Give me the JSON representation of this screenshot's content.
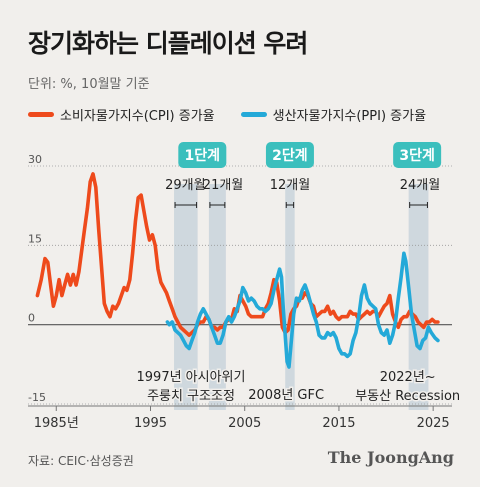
{
  "title": "장기화하는 디플레이션 우려",
  "unit": "단위: %, 10월말 기준",
  "source": "자료: CEIC·삼성증권",
  "logo": "The JoongAng",
  "colors": {
    "cpi": "#ee4a1c",
    "ppi": "#24a9d8",
    "stage": "#3bbfbd",
    "band": "#c9d3dc"
  },
  "chart_data": {
    "type": "line",
    "xlim": [
      1982,
      2027
    ],
    "ylim": [
      -15,
      30
    ],
    "x_ticks": [
      {
        "x": 1985,
        "label": "1985년"
      },
      {
        "x": 1995,
        "label": "1995"
      },
      {
        "x": 2005,
        "label": "2005"
      },
      {
        "x": 2015,
        "label": "2015"
      },
      {
        "x": 2025,
        "label": "2025"
      }
    ],
    "y_ticks": [
      {
        "y": 30,
        "label": "30"
      },
      {
        "y": 15,
        "label": "15"
      },
      {
        "y": 0,
        "label": "0"
      },
      {
        "y": -15,
        "label": "-15"
      }
    ],
    "series": [
      {
        "name": "소비자물가지수(CPI) 증가율",
        "color_key": "cpi",
        "points": [
          [
            1983.0,
            5.5
          ],
          [
            1983.4,
            8.5
          ],
          [
            1983.8,
            12.5
          ],
          [
            1984.1,
            11.8
          ],
          [
            1984.4,
            7.5
          ],
          [
            1984.7,
            3.5
          ],
          [
            1985.0,
            5.5
          ],
          [
            1985.3,
            8.5
          ],
          [
            1985.6,
            5.5
          ],
          [
            1985.9,
            7.5
          ],
          [
            1986.2,
            9.5
          ],
          [
            1986.5,
            7.5
          ],
          [
            1986.8,
            9.5
          ],
          [
            1987.1,
            7.5
          ],
          [
            1987.4,
            10.0
          ],
          [
            1987.7,
            14.0
          ],
          [
            1988.0,
            18.0
          ],
          [
            1988.3,
            22.0
          ],
          [
            1988.6,
            27.0
          ],
          [
            1988.9,
            28.5
          ],
          [
            1989.2,
            26.0
          ],
          [
            1989.5,
            18.0
          ],
          [
            1989.8,
            11.0
          ],
          [
            1990.1,
            4.0
          ],
          [
            1990.4,
            2.5
          ],
          [
            1990.7,
            1.5
          ],
          [
            1991.0,
            3.5
          ],
          [
            1991.3,
            3.0
          ],
          [
            1991.6,
            4.0
          ],
          [
            1991.9,
            5.5
          ],
          [
            1992.2,
            7.0
          ],
          [
            1992.5,
            6.5
          ],
          [
            1992.8,
            8.5
          ],
          [
            1993.1,
            13.5
          ],
          [
            1993.4,
            19.5
          ],
          [
            1993.7,
            24.0
          ],
          [
            1994.0,
            24.5
          ],
          [
            1994.3,
            21.5
          ],
          [
            1994.6,
            18.5
          ],
          [
            1994.9,
            16.0
          ],
          [
            1995.2,
            17.0
          ],
          [
            1995.5,
            15.0
          ],
          [
            1995.8,
            10.5
          ],
          [
            1996.1,
            8.0
          ],
          [
            1996.4,
            7.0
          ],
          [
            1996.7,
            6.0
          ],
          [
            1997.0,
            4.5
          ],
          [
            1997.3,
            3.0
          ],
          [
            1997.6,
            1.5
          ],
          [
            1997.9,
            0.5
          ],
          [
            1998.2,
            -0.5
          ],
          [
            1998.5,
            -1.0
          ],
          [
            1998.8,
            -1.5
          ],
          [
            1999.1,
            -2.0
          ],
          [
            1999.4,
            -1.5
          ],
          [
            1999.7,
            -1.0
          ],
          [
            2000.0,
            0.0
          ],
          [
            2000.3,
            0.5
          ],
          [
            2000.6,
            0.5
          ],
          [
            2000.9,
            1.5
          ],
          [
            2001.2,
            1.0
          ],
          [
            2001.5,
            -0.5
          ],
          [
            2001.8,
            -0.5
          ],
          [
            2002.1,
            -1.0
          ],
          [
            2002.4,
            -0.5
          ],
          [
            2002.7,
            -0.5
          ],
          [
            2003.0,
            0.5
          ],
          [
            2003.3,
            1.0
          ],
          [
            2003.6,
            1.0
          ],
          [
            2003.9,
            3.0
          ],
          [
            2004.2,
            2.5
          ],
          [
            2004.5,
            5.5
          ],
          [
            2004.8,
            4.5
          ],
          [
            2005.1,
            3.5
          ],
          [
            2005.4,
            2.0
          ],
          [
            2005.7,
            1.5
          ],
          [
            2006.0,
            1.5
          ],
          [
            2006.3,
            1.5
          ],
          [
            2006.6,
            1.5
          ],
          [
            2006.9,
            1.5
          ],
          [
            2007.2,
            3.0
          ],
          [
            2007.5,
            4.0
          ],
          [
            2007.8,
            6.0
          ],
          [
            2008.1,
            8.5
          ],
          [
            2008.4,
            8.0
          ],
          [
            2008.7,
            4.5
          ],
          [
            2009.0,
            -0.5
          ],
          [
            2009.3,
            -1.5
          ],
          [
            2009.6,
            -1.0
          ],
          [
            2009.9,
            2.0
          ],
          [
            2010.2,
            3.0
          ],
          [
            2010.5,
            3.5
          ],
          [
            2010.8,
            5.0
          ],
          [
            2011.1,
            5.0
          ],
          [
            2011.4,
            6.0
          ],
          [
            2011.7,
            5.5
          ],
          [
            2012.0,
            4.0
          ],
          [
            2012.3,
            3.5
          ],
          [
            2012.6,
            1.5
          ],
          [
            2012.9,
            2.0
          ],
          [
            2013.2,
            2.5
          ],
          [
            2013.5,
            2.5
          ],
          [
            2013.8,
            3.5
          ],
          [
            2014.1,
            2.0
          ],
          [
            2014.4,
            2.5
          ],
          [
            2014.7,
            1.5
          ],
          [
            2015.0,
            1.0
          ],
          [
            2015.3,
            1.5
          ],
          [
            2015.6,
            1.5
          ],
          [
            2015.9,
            1.5
          ],
          [
            2016.2,
            2.5
          ],
          [
            2016.5,
            2.0
          ],
          [
            2016.8,
            2.0
          ],
          [
            2017.1,
            1.0
          ],
          [
            2017.4,
            1.5
          ],
          [
            2017.7,
            2.0
          ],
          [
            2018.0,
            2.5
          ],
          [
            2018.3,
            2.0
          ],
          [
            2018.6,
            2.5
          ],
          [
            2018.9,
            2.5
          ],
          [
            2019.2,
            1.5
          ],
          [
            2019.5,
            2.5
          ],
          [
            2019.8,
            3.5
          ],
          [
            2020.1,
            4.0
          ],
          [
            2020.4,
            5.5
          ],
          [
            2020.7,
            2.0
          ],
          [
            2021.0,
            0.5
          ],
          [
            2021.3,
            -0.5
          ],
          [
            2021.6,
            1.0
          ],
          [
            2021.9,
            1.5
          ],
          [
            2022.2,
            1.5
          ],
          [
            2022.5,
            2.5
          ],
          [
            2022.8,
            2.0
          ],
          [
            2023.1,
            1.5
          ],
          [
            2023.4,
            0.5
          ],
          [
            2023.7,
            0.0
          ],
          [
            2024.0,
            -0.5
          ],
          [
            2024.3,
            0.5
          ],
          [
            2024.6,
            0.5
          ],
          [
            2024.9,
            1.0
          ],
          [
            2025.2,
            0.5
          ],
          [
            2025.5,
            0.5
          ]
        ]
      },
      {
        "name": "생산자물가지수(PPI) 증가율",
        "color_key": "ppi",
        "points": [
          [
            1996.8,
            0.5
          ],
          [
            1997.0,
            0.0
          ],
          [
            1997.3,
            0.5
          ],
          [
            1997.6,
            -1.0
          ],
          [
            1997.9,
            -1.5
          ],
          [
            1998.2,
            -2.0
          ],
          [
            1998.5,
            -3.0
          ],
          [
            1998.8,
            -4.0
          ],
          [
            1999.1,
            -4.5
          ],
          [
            1999.4,
            -3.0
          ],
          [
            1999.7,
            -1.5
          ],
          [
            2000.0,
            0.5
          ],
          [
            2000.3,
            2.0
          ],
          [
            2000.6,
            3.0
          ],
          [
            2000.9,
            2.0
          ],
          [
            2001.2,
            1.0
          ],
          [
            2001.5,
            -0.5
          ],
          [
            2001.8,
            -2.0
          ],
          [
            2002.1,
            -3.5
          ],
          [
            2002.4,
            -3.5
          ],
          [
            2002.7,
            -2.0
          ],
          [
            2003.0,
            0.5
          ],
          [
            2003.3,
            1.5
          ],
          [
            2003.6,
            0.5
          ],
          [
            2003.9,
            1.5
          ],
          [
            2004.2,
            3.0
          ],
          [
            2004.5,
            4.5
          ],
          [
            2004.8,
            7.0
          ],
          [
            2005.1,
            6.0
          ],
          [
            2005.4,
            4.5
          ],
          [
            2005.7,
            5.0
          ],
          [
            2006.0,
            4.5
          ],
          [
            2006.3,
            3.5
          ],
          [
            2006.6,
            3.0
          ],
          [
            2006.9,
            3.0
          ],
          [
            2007.2,
            2.5
          ],
          [
            2007.5,
            3.0
          ],
          [
            2007.8,
            4.0
          ],
          [
            2008.1,
            6.5
          ],
          [
            2008.4,
            8.5
          ],
          [
            2008.7,
            10.5
          ],
          [
            2008.9,
            9.0
          ],
          [
            2009.1,
            3.0
          ],
          [
            2009.3,
            -2.0
          ],
          [
            2009.5,
            -7.0
          ],
          [
            2009.7,
            -8.0
          ],
          [
            2009.9,
            -4.0
          ],
          [
            2010.2,
            2.0
          ],
          [
            2010.5,
            5.0
          ],
          [
            2010.8,
            4.5
          ],
          [
            2011.1,
            6.5
          ],
          [
            2011.4,
            7.5
          ],
          [
            2011.7,
            6.0
          ],
          [
            2012.0,
            4.0
          ],
          [
            2012.3,
            2.0
          ],
          [
            2012.6,
            0.5
          ],
          [
            2012.9,
            -2.0
          ],
          [
            2013.2,
            -2.5
          ],
          [
            2013.5,
            -2.5
          ],
          [
            2013.8,
            -1.5
          ],
          [
            2014.1,
            -2.0
          ],
          [
            2014.4,
            -1.5
          ],
          [
            2014.7,
            -2.5
          ],
          [
            2015.0,
            -4.5
          ],
          [
            2015.3,
            -5.5
          ],
          [
            2015.6,
            -5.5
          ],
          [
            2015.9,
            -6.0
          ],
          [
            2016.2,
            -5.5
          ],
          [
            2016.5,
            -3.0
          ],
          [
            2016.8,
            -1.5
          ],
          [
            2017.1,
            1.5
          ],
          [
            2017.4,
            5.5
          ],
          [
            2017.7,
            7.5
          ],
          [
            2018.0,
            5.0
          ],
          [
            2018.3,
            4.0
          ],
          [
            2018.6,
            3.5
          ],
          [
            2018.9,
            3.0
          ],
          [
            2019.2,
            0.0
          ],
          [
            2019.5,
            -1.5
          ],
          [
            2019.8,
            -2.0
          ],
          [
            2020.1,
            -1.0
          ],
          [
            2020.4,
            -3.5
          ],
          [
            2020.7,
            -2.0
          ],
          [
            2021.0,
            0.5
          ],
          [
            2021.3,
            5.0
          ],
          [
            2021.6,
            9.0
          ],
          [
            2021.9,
            13.5
          ],
          [
            2022.1,
            12.0
          ],
          [
            2022.4,
            7.0
          ],
          [
            2022.7,
            2.0
          ],
          [
            2023.0,
            -1.0
          ],
          [
            2023.3,
            -4.0
          ],
          [
            2023.6,
            -4.5
          ],
          [
            2023.9,
            -3.0
          ],
          [
            2024.2,
            -2.5
          ],
          [
            2024.5,
            -0.5
          ],
          [
            2024.8,
            -1.5
          ],
          [
            2025.2,
            -2.5
          ],
          [
            2025.5,
            -3.0
          ]
        ]
      }
    ],
    "bands": [
      {
        "x0": 1997.5,
        "x1": 2000.0
      },
      {
        "x0": 2001.2,
        "x1": 2003.0
      },
      {
        "x0": 2009.3,
        "x1": 2010.3
      },
      {
        "x0": 2022.4,
        "x1": 2024.5
      }
    ],
    "stages": [
      {
        "label": "1단계",
        "x": 2000.5
      },
      {
        "label": "2단계",
        "x": 2009.8
      },
      {
        "label": "3단계",
        "x": 2023.3
      }
    ],
    "durations": [
      {
        "label": "29개월",
        "x": 1998.7,
        "bx0": 1997.5,
        "bx1": 2000.0
      },
      {
        "label": "21개월",
        "x": 2002.7,
        "bx0": 2001.2,
        "bx1": 2003.0
      },
      {
        "label": "12개월",
        "x": 2009.8,
        "bx0": 2009.3,
        "bx1": 2010.3
      },
      {
        "label": "24개월",
        "x": 2023.6,
        "bx0": 2022.4,
        "bx1": 2024.5
      }
    ],
    "annotations": [
      {
        "lines": [
          "1997년 아시아위기",
          "주룽치 구조조정"
        ],
        "x": 1999.3
      },
      {
        "lines": [
          "2008년 GFC"
        ],
        "x": 2009.4
      },
      {
        "lines": [
          "2022년~",
          "부동산 Recession"
        ],
        "x": 2022.3
      }
    ]
  }
}
